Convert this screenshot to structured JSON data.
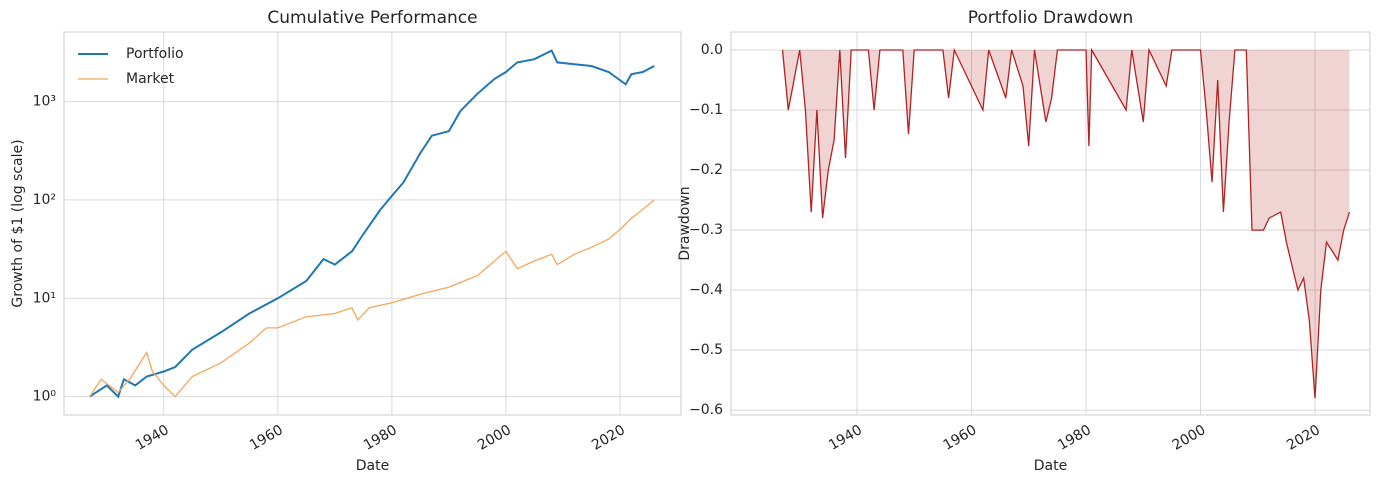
{
  "chart_data": [
    {
      "type": "line",
      "title": "Cumulative Performance",
      "xlabel": "Date",
      "ylabel": "Growth of $1 (log scale)",
      "log_y": true,
      "grid": true,
      "legend": "upper left",
      "xlim": [
        1922.5,
        2030.7
      ],
      "xticks": [
        1940,
        1960,
        1980,
        2000,
        2020
      ],
      "ylim": [
        0.65,
        5100
      ],
      "yticks": [
        {
          "value": 1,
          "label": "10⁰"
        },
        {
          "value": 10,
          "label": "10¹"
        },
        {
          "value": 100,
          "label": "10²"
        },
        {
          "value": 1000,
          "label": "10³"
        }
      ],
      "series": [
        {
          "name": "Portfolio",
          "color": "#1f77b4",
          "x": [
            1927,
            1930,
            1932,
            1933,
            1935,
            1937,
            1940,
            1942,
            1945,
            1950,
            1955,
            1960,
            1965,
            1968,
            1970,
            1973,
            1975,
            1978,
            1980,
            1982,
            1985,
            1987,
            1990,
            1992,
            1995,
            1998,
            2000,
            2002,
            2005,
            2008,
            2009,
            2012,
            2015,
            2018,
            2021,
            2022,
            2024,
            2026
          ],
          "values": [
            1,
            1.3,
            1.0,
            1.5,
            1.3,
            1.6,
            1.8,
            2.0,
            3.0,
            4.5,
            7,
            10,
            15,
            25,
            22,
            30,
            45,
            80,
            110,
            150,
            300,
            450,
            500,
            800,
            1200,
            1700,
            2000,
            2500,
            2700,
            3300,
            2500,
            2400,
            2300,
            2000,
            1500,
            1900,
            2000,
            2300
          ]
        },
        {
          "name": "Market",
          "color": "#f5a65b",
          "x": [
            1927,
            1929,
            1932,
            1934,
            1937,
            1938,
            1940,
            1942,
            1945,
            1950,
            1955,
            1958,
            1960,
            1965,
            1970,
            1973,
            1974,
            1976,
            1980,
            1985,
            1990,
            1995,
            2000,
            2002,
            2005,
            2008,
            2009,
            2012,
            2015,
            2018,
            2020,
            2022,
            2024,
            2026
          ],
          "values": [
            1,
            1.5,
            1.1,
            1.5,
            2.8,
            1.8,
            1.3,
            1.0,
            1.6,
            2.2,
            3.5,
            5,
            5,
            6.5,
            7,
            8,
            6,
            8,
            9,
            11,
            13,
            17,
            30,
            20,
            24,
            28,
            22,
            28,
            33,
            40,
            50,
            65,
            80,
            100
          ]
        }
      ]
    },
    {
      "type": "area",
      "title": "Portfolio Drawdown",
      "xlabel": "Date",
      "ylabel": "Drawdown",
      "grid": true,
      "xlim": [
        1918,
        2029.6
      ],
      "xticks": [
        1940,
        1960,
        1980,
        2000,
        2020
      ],
      "ylim": [
        -0.608,
        0.03
      ],
      "yticks": [
        {
          "value": 0,
          "label": "0.0"
        },
        {
          "value": -0.1,
          "label": "−0.1"
        },
        {
          "value": -0.2,
          "label": "−0.2"
        },
        {
          "value": -0.3,
          "label": "−0.3"
        },
        {
          "value": -0.4,
          "label": "−0.4"
        },
        {
          "value": -0.5,
          "label": "−0.5"
        },
        {
          "value": -0.6,
          "label": "−0.6"
        }
      ],
      "color": "#b22222",
      "x": [
        1927,
        1928,
        1929,
        1930,
        1931,
        1932,
        1933,
        1934,
        1935,
        1936,
        1937,
        1938,
        1939,
        1942,
        1943,
        1944,
        1948,
        1949,
        1950,
        1955,
        1956,
        1957,
        1962,
        1963,
        1966,
        1967,
        1969,
        1970,
        1971,
        1973,
        1974,
        1975,
        1980,
        1980.5,
        1981,
        1987,
        1988,
        1990,
        1991,
        1994,
        1995,
        2000,
        2001,
        2002,
        2003,
        2004,
        2005,
        2006,
        2008,
        2009,
        2011,
        2012,
        2014,
        2015,
        2016,
        2017,
        2018,
        2019,
        2020,
        2021,
        2022,
        2024,
        2025,
        2026
      ],
      "values": [
        0,
        -0.1,
        -0.05,
        0,
        -0.1,
        -0.27,
        -0.1,
        -0.28,
        -0.2,
        -0.15,
        0,
        -0.18,
        0,
        0,
        -0.1,
        0,
        0,
        -0.14,
        0,
        0,
        -0.08,
        0,
        -0.1,
        0,
        -0.08,
        0,
        -0.06,
        -0.16,
        0,
        -0.12,
        -0.08,
        0,
        0,
        -0.16,
        0,
        -0.1,
        0,
        -0.12,
        0,
        -0.06,
        0,
        0,
        -0.1,
        -0.22,
        -0.05,
        -0.27,
        -0.12,
        0,
        0,
        -0.3,
        -0.3,
        -0.28,
        -0.27,
        -0.32,
        -0.36,
        -0.4,
        -0.38,
        -0.45,
        -0.58,
        -0.4,
        -0.32,
        -0.35,
        -0.3,
        -0.27
      ]
    }
  ]
}
